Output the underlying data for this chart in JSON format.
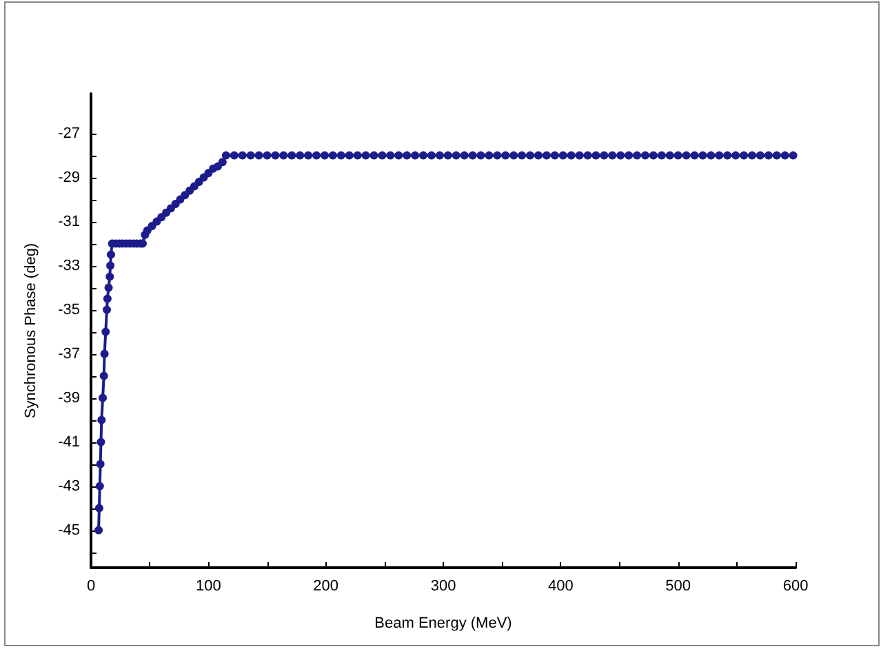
{
  "chart_data": {
    "type": "line",
    "xlabel": "Beam Energy (MeV)",
    "ylabel": "Synchronous Phase (deg)",
    "x": [
      6.5,
      7,
      7.5,
      8,
      8.5,
      9,
      10,
      11,
      11.5,
      12.5,
      13.5,
      14,
      15,
      16,
      16.5,
      17,
      18,
      21,
      24,
      27,
      30,
      33,
      36,
      39,
      42,
      44,
      46,
      48,
      52,
      56,
      60,
      64,
      68,
      72,
      76,
      80,
      84,
      88,
      92,
      96,
      100,
      104,
      108,
      112,
      115,
      122,
      129,
      136,
      143,
      150,
      157,
      164,
      171,
      178,
      185,
      192,
      199,
      206,
      213,
      220,
      227,
      234,
      241,
      248,
      255,
      262,
      269,
      276,
      283,
      290,
      297,
      304,
      311,
      318,
      325,
      332,
      339,
      346,
      353,
      360,
      367,
      374,
      381,
      388,
      395,
      402,
      409,
      416,
      423,
      430,
      437,
      444,
      451,
      458,
      465,
      472,
      479,
      486,
      493,
      500,
      507,
      514,
      521,
      528,
      535,
      542,
      549,
      556,
      563,
      570,
      577,
      584,
      591,
      598
    ],
    "values": [
      -45,
      -44,
      -43,
      -42,
      -41,
      -40,
      -39,
      -38,
      -37,
      -36,
      -35,
      -34.5,
      -34,
      -33.5,
      -33,
      -32.5,
      -32,
      -32,
      -32,
      -32,
      -32,
      -32,
      -32,
      -32,
      -32,
      -32,
      -31.6,
      -31.4,
      -31.2,
      -31,
      -30.8,
      -30.6,
      -30.4,
      -30.2,
      -30,
      -29.8,
      -29.6,
      -29.4,
      -29.2,
      -29,
      -28.8,
      -28.6,
      -28.5,
      -28.3,
      -28,
      -28,
      -28,
      -28,
      -28,
      -28,
      -28,
      -28,
      -28,
      -28,
      -28,
      -28,
      -28,
      -28,
      -28,
      -28,
      -28,
      -28,
      -28,
      -28,
      -28,
      -28,
      -28,
      -28,
      -28,
      -28,
      -28,
      -28,
      -28,
      -28,
      -28,
      -28,
      -28,
      -28,
      -28,
      -28,
      -28,
      -28,
      -28,
      -28,
      -28,
      -28,
      -28,
      -28,
      -28,
      -28,
      -28,
      -28,
      -28,
      -28,
      -28,
      -28,
      -28,
      -28,
      -28,
      -28,
      -28,
      -28,
      -28,
      -28,
      -28,
      -28,
      -28,
      -28,
      -28,
      -28,
      -28,
      -28,
      -28,
      -28
    ],
    "color": "#1c1c8c",
    "marker": "circle",
    "grid": false,
    "xlim": [
      0,
      600
    ],
    "xticks": [
      0,
      {
        "value": 50,
        "label": null
      },
      100,
      {
        "value": 150,
        "label": null
      },
      200,
      {
        "value": 250,
        "label": null
      },
      300,
      {
        "value": 350,
        "label": null
      },
      400,
      {
        "value": 450,
        "label": null
      },
      500,
      {
        "value": 550,
        "label": null
      },
      600
    ],
    "ylim": [
      -46.7,
      -25.2
    ],
    "yticks": [
      {
        "value": -46,
        "label": null
      },
      -45,
      {
        "value": -44,
        "label": null
      },
      -43,
      {
        "value": -42,
        "label": null
      },
      -41,
      {
        "value": -40,
        "label": null
      },
      -39,
      {
        "value": -38,
        "label": null
      },
      -37,
      {
        "value": -36,
        "label": null
      },
      -35,
      {
        "value": -34,
        "label": null
      },
      -33,
      {
        "value": -32,
        "label": null
      },
      -31,
      {
        "value": -30,
        "label": null
      },
      -29,
      {
        "value": -28,
        "label": null
      },
      -27
    ]
  }
}
